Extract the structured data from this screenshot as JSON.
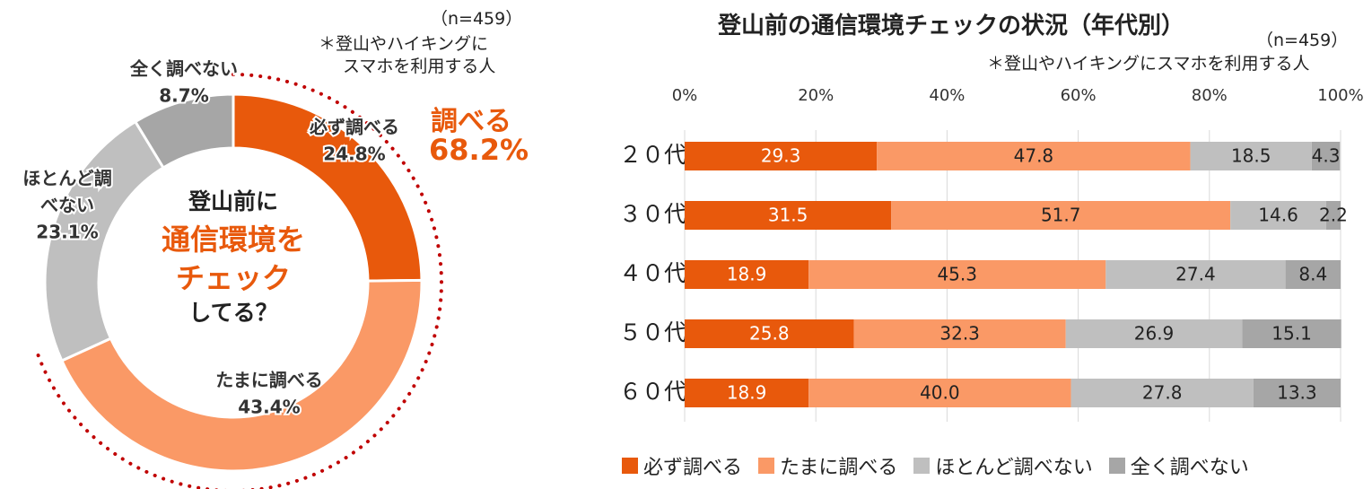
{
  "donut": {
    "sample_note": "（n=459）",
    "subject_note_line1": "＊登山やハイキングに",
    "subject_note_line2": "スマホを利用する人",
    "center_line1": "登山前に",
    "center_line2": "通信環境を",
    "center_line3": "チェック",
    "center_line4": "してる？",
    "highlight_label": "調べる",
    "highlight_value": "68.2%"
  },
  "bar": {
    "sample_note": "（n=459）",
    "subject_note": "＊登山やハイキングにスマホを利用する人"
  },
  "colors": {
    "always": "#E8590C",
    "sometimes": "#FA9966",
    "rarely": "#BFBFBF",
    "never": "#A6A6A6",
    "highlight": "#E8590C",
    "dotted_arc": "#C00000"
  },
  "chart_data": [
    {
      "type": "pie",
      "variant": "donut",
      "categories": [
        "必ず調べる",
        "たまに調べる",
        "ほとんど調べない",
        "全く調べない"
      ],
      "values": [
        24.8,
        43.4,
        23.1,
        8.7
      ],
      "labels": [
        [
          "必ず調べる",
          "24.8%"
        ],
        [
          "たまに調べる",
          "43.4%"
        ],
        [
          "ほとんど調",
          "べない",
          "23.1%"
        ],
        [
          "全く調べない",
          "8.7%"
        ]
      ]
    },
    {
      "type": "bar",
      "orientation": "horizontal",
      "stacked": true,
      "title": "登山前の通信環境チェックの状況（年代別）",
      "categories": [
        "２０代",
        "３０代",
        "４０代",
        "５０代",
        "６０代"
      ],
      "xlim": [
        0,
        100
      ],
      "xticks": [
        "0%",
        "20%",
        "40%",
        "60%",
        "80%",
        "100%"
      ],
      "grid": true,
      "legend_position": "bottom",
      "series": [
        {
          "name": "必ず調べる",
          "values": [
            29.3,
            31.5,
            18.9,
            25.8,
            18.9
          ]
        },
        {
          "name": "たまに調べる",
          "values": [
            47.8,
            51.7,
            45.3,
            32.3,
            40.0
          ]
        },
        {
          "name": "ほとんど調べない",
          "values": [
            18.5,
            14.6,
            27.4,
            26.9,
            27.8
          ]
        },
        {
          "name": "全く調べない",
          "values": [
            4.3,
            2.2,
            8.4,
            15.1,
            13.3
          ]
        }
      ]
    }
  ]
}
